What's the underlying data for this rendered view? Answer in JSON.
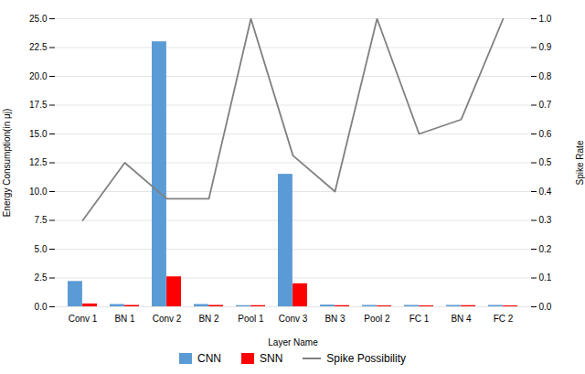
{
  "chart_data": {
    "type": "bar",
    "categories": [
      "Conv 1",
      "BN 1",
      "Conv 2",
      "BN 2",
      "Pool 1",
      "Conv 3",
      "BN 3",
      "Pool 2",
      "FC 1",
      "BN 4",
      "FC 2"
    ],
    "xlabel": "Layer Name",
    "ylabel": "Energy Consumption(in μj)",
    "y2label": "Spike Rate",
    "ylim": [
      0,
      25
    ],
    "yticks": [
      {
        "value": 0,
        "label": "0.0"
      },
      2.5,
      {
        "value": 5,
        "label": "5.0"
      },
      7.5,
      {
        "value": 10,
        "label": "10.0"
      },
      12.5,
      {
        "value": 15,
        "label": "15.0"
      },
      17.5,
      {
        "value": 20,
        "label": "20.0"
      },
      22.5,
      {
        "value": 25,
        "label": "25.0"
      }
    ],
    "y2lim": [
      0,
      1.0
    ],
    "y2ticks": [
      {
        "value": 0,
        "label": "0.0"
      },
      0.1,
      0.2,
      0.3,
      0.4,
      0.5,
      0.6,
      0.7,
      0.8,
      0.9,
      {
        "value": 1.0,
        "label": "1.0"
      }
    ],
    "grid": true,
    "legend": "bottom",
    "series": [
      {
        "name": "CNN",
        "color": "#5B9BD5",
        "values": [
          2.2,
          0.2,
          23.0,
          0.2,
          0.1,
          11.5,
          0.15,
          0.12,
          0.12,
          0.12,
          0.12
        ]
      },
      {
        "name": "SNN",
        "color": "#FF0000",
        "values": [
          0.25,
          0.12,
          2.6,
          0.12,
          0.1,
          2.0,
          0.1,
          0.08,
          0.08,
          0.1,
          0.08
        ]
      },
      {
        "name": "Spike Possibility",
        "color": "#808080",
        "type": "line",
        "axis": "y2",
        "values": [
          0.3,
          0.5,
          0.375,
          0.375,
          1.0,
          0.525,
          0.4,
          1.0,
          0.6,
          0.65,
          1.0
        ]
      }
    ]
  }
}
